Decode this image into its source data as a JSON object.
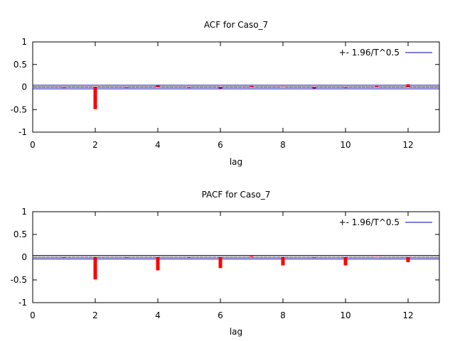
{
  "colors": {
    "bars": "#ff0000",
    "band": "#0000a0",
    "zero_line": "#000000",
    "zero_dots": "#a020f0"
  },
  "chart_data": [
    {
      "type": "bar",
      "title": "ACF for Caso_7",
      "xlabel": "lag",
      "ylabel": "",
      "xlim": [
        0,
        13
      ],
      "ylim": [
        -1,
        1
      ],
      "xticks": [
        "0",
        "2",
        "4",
        "6",
        "8",
        "10",
        "12"
      ],
      "yticks": [
        "1",
        "0.5",
        "0",
        "-0.5",
        "-1"
      ],
      "legend": {
        "label": "+- 1.96/T^0.5",
        "position": "top-right"
      },
      "band": 0.0392,
      "grid": false,
      "series": [
        {
          "x": [
            1,
            2,
            3,
            4,
            5,
            6,
            7,
            8,
            9,
            10,
            11,
            12
          ],
          "values": [
            0.0,
            -0.49,
            0.0,
            0.03,
            0.0,
            -0.03,
            0.02,
            0.01,
            -0.03,
            -0.01,
            0.02,
            0.06
          ]
        }
      ]
    },
    {
      "type": "bar",
      "title": "PACF for Caso_7",
      "xlabel": "lag",
      "ylabel": "",
      "xlim": [
        0,
        13
      ],
      "ylim": [
        -1,
        1
      ],
      "xticks": [
        "0",
        "2",
        "4",
        "6",
        "8",
        "10",
        "12"
      ],
      "yticks": [
        "1",
        "0.5",
        "0",
        "-0.5",
        "-1"
      ],
      "legend": {
        "label": "+- 1.96/T^0.5",
        "position": "top-right"
      },
      "band": 0.0392,
      "grid": false,
      "series": [
        {
          "x": [
            1,
            2,
            3,
            4,
            5,
            6,
            7,
            8,
            9,
            10,
            11,
            12
          ],
          "values": [
            0.0,
            -0.49,
            0.0,
            -0.29,
            0.0,
            -0.24,
            0.02,
            -0.18,
            -0.01,
            -0.18,
            0.01,
            -0.11
          ]
        }
      ]
    }
  ]
}
